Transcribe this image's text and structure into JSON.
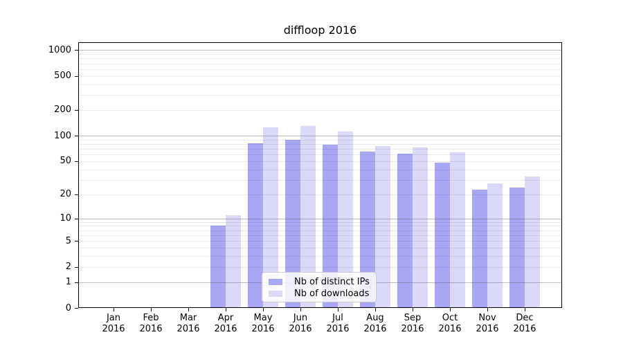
{
  "chart_data": {
    "type": "bar",
    "title": "diffloop 2016",
    "y_scale": "log1p",
    "ylabel": "",
    "xlabel": "",
    "ylim": [
      0,
      1230
    ],
    "y_ticks": [
      0,
      1,
      2,
      5,
      10,
      20,
      50,
      100,
      200,
      500,
      1000
    ],
    "grid": true,
    "legend_position": "lower-center",
    "categories": [
      "Jan",
      "Feb",
      "Mar",
      "Apr",
      "May",
      "Jun",
      "Jul",
      "Aug",
      "Sep",
      "Oct",
      "Nov",
      "Dec"
    ],
    "year_label": "2016",
    "series": [
      {
        "name": "Nb of distinct IPs",
        "color": "#a7a7f4",
        "values": [
          0,
          0,
          0,
          8,
          81,
          90,
          79,
          65,
          61,
          48,
          23,
          24
        ]
      },
      {
        "name": "Nb of downloads",
        "color": "#dadaf8",
        "values": [
          0,
          0,
          0,
          11,
          125,
          130,
          111,
          76,
          73,
          64,
          27,
          33
        ]
      }
    ]
  }
}
